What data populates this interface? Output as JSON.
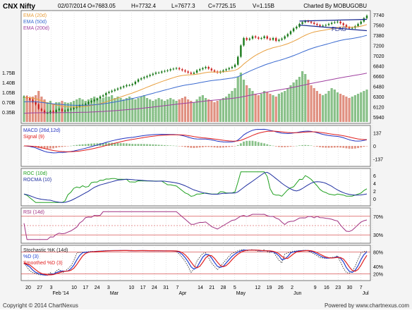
{
  "header": {
    "symbol": "CNX Nifty",
    "date": "02/07/2014",
    "open": "O=7683.05",
    "high": "H=7732.4",
    "low": "L=7677.3",
    "close": "C=7725.15",
    "volume": "V=1.15B",
    "charted_by": "Charted By MOBUGOBU"
  },
  "footer": {
    "copyright": "Copyright © 2014 ChartNexus",
    "powered": "Powered by www.chartnexus.com"
  },
  "colors": {
    "price_up": "#1a7a1a",
    "price_down": "#cc2222",
    "ema20": "#e8a040",
    "ema50": "#3a6ad0",
    "ema200": "#a040a0",
    "vol_up": "#88c088",
    "vol_down": "#e09080",
    "macd": "#2030c0",
    "signal": "#e02020",
    "roc": "#20a020",
    "rocma": "#2030a0",
    "rsi": "#a03080",
    "stoch_k": "#202020",
    "stoch_d": "#2040d0",
    "stoch_sd": "#e02020",
    "ref_line": "#d03030",
    "trend_line": "#1a2a90"
  },
  "chart_data": [
    {
      "type": "candlestick",
      "panel": "price",
      "legend": [
        "EMA (20d)",
        "EMA (50d)",
        "EMA (200d)"
      ],
      "y_ticks": [
        7740,
        7560,
        7380,
        7200,
        7020,
        6840,
        6660,
        6480,
        6300,
        6120,
        5940
      ],
      "ylim": [
        5850,
        7790
      ],
      "volume_ticks": [
        "1.75B",
        "1.40B",
        "1.05B",
        "0.70B",
        "0.35B"
      ],
      "volume_ylim": [
        0,
        2.0
      ],
      "annotation": "FLAG",
      "x_labels": [
        "20",
        "27",
        "3",
        "Feb '14",
        "10",
        "17",
        "24",
        "3",
        "Mar",
        "10",
        "17",
        "24",
        "31",
        "7",
        "Apr",
        "14",
        "21",
        "28",
        "5",
        "May",
        "12",
        "19",
        "26",
        "2",
        "Jun",
        "9",
        "16",
        "23",
        "30",
        "7",
        "Jul"
      ],
      "close": [
        6300,
        6280,
        6240,
        6200,
        6160,
        6080,
        6050,
        6010,
        6010,
        6040,
        6020,
        6060,
        6080,
        6040,
        6050,
        6070,
        6080,
        6100,
        6120,
        6140,
        6150,
        6170,
        6200,
        6220,
        6240,
        6260,
        6300,
        6320,
        6360,
        6380,
        6400,
        6420,
        6440,
        6460,
        6480,
        6500,
        6500,
        6520,
        6560,
        6600,
        6620,
        6640,
        6660,
        6680,
        6700,
        6720,
        6720,
        6740,
        6750,
        6760,
        6780,
        6790,
        6800,
        6780,
        6760,
        6740,
        6720,
        6700,
        6720,
        6760,
        6780,
        6800,
        6820,
        6790,
        6760,
        6740,
        6720,
        6740,
        6760,
        6780,
        6800,
        6820,
        6860,
        7000,
        7200,
        7330,
        7300,
        7320,
        7360,
        7340,
        7320,
        7330,
        7360,
        7320,
        7300,
        7330,
        7280,
        7300,
        7320,
        7360,
        7400,
        7450,
        7500,
        7530,
        7580,
        7610,
        7630,
        7620,
        7600,
        7580,
        7560,
        7540,
        7550,
        7560,
        7580,
        7600,
        7610,
        7620,
        7590,
        7560,
        7520,
        7500,
        7510,
        7540,
        7580,
        7620,
        7680,
        7725
      ],
      "volume": [
        0.9,
        0.85,
        0.8,
        0.9,
        0.95,
        1.1,
        0.9,
        0.8,
        0.7,
        0.75,
        0.65,
        0.7,
        0.7,
        0.75,
        0.7,
        0.68,
        0.7,
        0.75,
        0.8,
        0.85,
        0.8,
        0.75,
        0.8,
        0.85,
        0.9,
        0.85,
        0.8,
        0.85,
        0.9,
        0.9,
        0.95,
        0.85,
        0.9,
        0.85,
        0.8,
        0.85,
        0.9,
        0.85,
        0.8,
        0.85,
        0.9,
        0.95,
        0.85,
        0.8,
        0.75,
        0.8,
        0.85,
        0.8,
        0.75,
        0.8,
        0.85,
        0.8,
        0.75,
        0.8,
        0.85,
        0.9,
        0.8,
        0.75,
        0.7,
        0.8,
        0.9,
        0.95,
        0.85,
        0.8,
        0.75,
        0.7,
        0.75,
        0.8,
        0.85,
        0.9,
        1.0,
        1.1,
        1.2,
        1.6,
        1.75,
        1.5,
        1.3,
        1.2,
        1.1,
        1.0,
        0.95,
        1.0,
        1.1,
        1.05,
        1.0,
        0.95,
        0.9,
        1.0,
        1.05,
        1.1,
        1.2,
        1.3,
        1.4,
        1.5,
        1.6,
        1.8,
        1.7,
        1.5,
        1.3,
        1.2,
        1.1,
        1.0,
        0.95,
        1.0,
        1.1,
        1.2,
        1.15,
        1.05,
        1.0,
        0.95,
        0.9,
        0.85,
        0.9,
        0.95,
        1.0,
        1.05,
        1.1,
        1.15
      ]
    },
    {
      "type": "line",
      "panel": "macd",
      "legend": [
        "MACD (26d,12d)",
        "Signal (9)"
      ],
      "y_ticks": [
        137,
        0,
        -137
      ],
      "ylim": [
        -200,
        200
      ]
    },
    {
      "type": "line",
      "panel": "roc",
      "legend": [
        "ROC (10d)",
        "ROCMA (10)"
      ],
      "y_ticks": [
        6,
        4,
        2,
        0
      ],
      "ylim": [
        -1.5,
        7.5
      ]
    },
    {
      "type": "line",
      "panel": "rsi",
      "legend": [
        "RSI (14d)"
      ],
      "y_ticks": [
        "70%",
        "30%"
      ],
      "ylim": [
        15,
        85
      ],
      "ref_lines": [
        70,
        50,
        30
      ]
    },
    {
      "type": "line",
      "panel": "stochastic",
      "legend": [
        "Stochastic %K (14d)",
        "%D (3)",
        "Smoothed %D (3)"
      ],
      "y_ticks": [
        "80%",
        "40%",
        "20%"
      ],
      "ylim": [
        5,
        95
      ],
      "ref_lines": [
        80,
        20
      ]
    }
  ]
}
